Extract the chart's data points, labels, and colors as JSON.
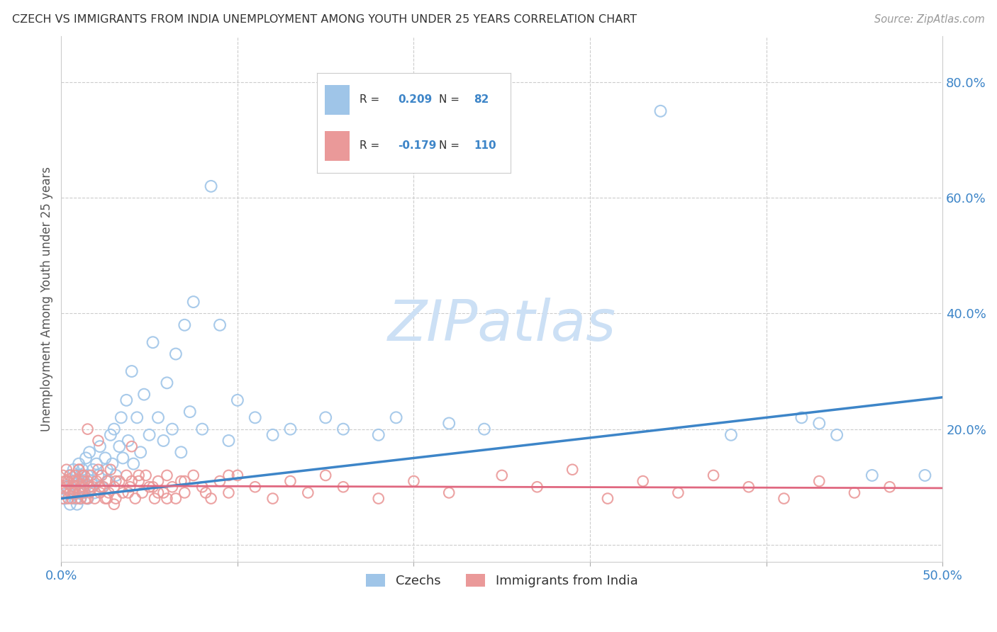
{
  "title": "CZECH VS IMMIGRANTS FROM INDIA UNEMPLOYMENT AMONG YOUTH UNDER 25 YEARS CORRELATION CHART",
  "source": "Source: ZipAtlas.com",
  "ylabel": "Unemployment Among Youth under 25 years",
  "xlim": [
    0.0,
    0.5
  ],
  "ylim": [
    -0.03,
    0.88
  ],
  "xtick_pos": [
    0.0,
    0.1,
    0.2,
    0.3,
    0.4,
    0.5
  ],
  "xtick_labels": [
    "0.0%",
    "",
    "",
    "",
    "",
    "50.0%"
  ],
  "ytick_right_pos": [
    0.0,
    0.2,
    0.4,
    0.6,
    0.8
  ],
  "ytick_right_labels": [
    "",
    "20.0%",
    "40.0%",
    "60.0%",
    "80.0%"
  ],
  "czech_R": 0.209,
  "czech_N": 82,
  "india_R": -0.179,
  "india_N": 110,
  "blue_color": "#9fc5e8",
  "pink_color": "#ea9999",
  "blue_line_color": "#3d85c8",
  "pink_line_color": "#e06880",
  "title_color": "#333333",
  "source_color": "#999999",
  "watermark_color": "#ddeeff",
  "background_color": "#ffffff",
  "grid_color": "#cccccc",
  "czech_line_start_y": 0.08,
  "czech_line_end_y": 0.255,
  "india_line_start_y": 0.102,
  "india_line_end_y": 0.098,
  "czech_x": [
    0.002,
    0.003,
    0.004,
    0.005,
    0.005,
    0.006,
    0.007,
    0.007,
    0.008,
    0.008,
    0.009,
    0.009,
    0.01,
    0.01,
    0.01,
    0.011,
    0.011,
    0.012,
    0.012,
    0.013,
    0.013,
    0.014,
    0.015,
    0.015,
    0.016,
    0.016,
    0.017,
    0.018,
    0.019,
    0.02,
    0.021,
    0.022,
    0.023,
    0.025,
    0.026,
    0.027,
    0.028,
    0.029,
    0.03,
    0.031,
    0.033,
    0.034,
    0.035,
    0.037,
    0.038,
    0.04,
    0.041,
    0.043,
    0.045,
    0.047,
    0.05,
    0.052,
    0.055,
    0.058,
    0.06,
    0.063,
    0.065,
    0.068,
    0.07,
    0.073,
    0.075,
    0.08,
    0.085,
    0.09,
    0.095,
    0.1,
    0.11,
    0.12,
    0.13,
    0.15,
    0.16,
    0.18,
    0.19,
    0.22,
    0.24,
    0.34,
    0.38,
    0.42,
    0.43,
    0.44,
    0.46,
    0.49
  ],
  "czech_y": [
    0.08,
    0.1,
    0.09,
    0.12,
    0.07,
    0.11,
    0.09,
    0.13,
    0.08,
    0.1,
    0.12,
    0.07,
    0.09,
    0.11,
    0.14,
    0.08,
    0.12,
    0.1,
    0.13,
    0.09,
    0.11,
    0.15,
    0.08,
    0.12,
    0.1,
    0.16,
    0.11,
    0.13,
    0.09,
    0.14,
    0.12,
    0.17,
    0.1,
    0.15,
    0.13,
    0.11,
    0.19,
    0.14,
    0.2,
    0.12,
    0.17,
    0.22,
    0.15,
    0.25,
    0.18,
    0.3,
    0.14,
    0.22,
    0.16,
    0.26,
    0.19,
    0.35,
    0.22,
    0.18,
    0.28,
    0.2,
    0.33,
    0.16,
    0.38,
    0.23,
    0.42,
    0.2,
    0.62,
    0.38,
    0.18,
    0.25,
    0.22,
    0.19,
    0.2,
    0.22,
    0.2,
    0.19,
    0.22,
    0.21,
    0.2,
    0.75,
    0.19,
    0.22,
    0.21,
    0.19,
    0.12,
    0.12
  ],
  "india_x": [
    0.0,
    0.001,
    0.001,
    0.002,
    0.002,
    0.003,
    0.003,
    0.004,
    0.004,
    0.005,
    0.005,
    0.006,
    0.006,
    0.007,
    0.007,
    0.008,
    0.008,
    0.009,
    0.009,
    0.01,
    0.01,
    0.011,
    0.011,
    0.012,
    0.012,
    0.013,
    0.013,
    0.014,
    0.015,
    0.015,
    0.016,
    0.017,
    0.018,
    0.019,
    0.02,
    0.021,
    0.022,
    0.023,
    0.024,
    0.025,
    0.026,
    0.027,
    0.028,
    0.03,
    0.031,
    0.033,
    0.035,
    0.037,
    0.039,
    0.04,
    0.042,
    0.044,
    0.046,
    0.048,
    0.05,
    0.053,
    0.055,
    0.058,
    0.06,
    0.063,
    0.065,
    0.068,
    0.07,
    0.075,
    0.08,
    0.085,
    0.09,
    0.095,
    0.1,
    0.11,
    0.12,
    0.13,
    0.14,
    0.15,
    0.16,
    0.18,
    0.2,
    0.22,
    0.25,
    0.27,
    0.29,
    0.31,
    0.33,
    0.35,
    0.37,
    0.39,
    0.41,
    0.43,
    0.45,
    0.47,
    0.003,
    0.007,
    0.012,
    0.016,
    0.021,
    0.026,
    0.031,
    0.038,
    0.044,
    0.052,
    0.06,
    0.07,
    0.082,
    0.095,
    0.01,
    0.015,
    0.022,
    0.03,
    0.04,
    0.055
  ],
  "india_y": [
    0.1,
    0.12,
    0.08,
    0.11,
    0.09,
    0.13,
    0.1,
    0.08,
    0.11,
    0.09,
    0.12,
    0.1,
    0.08,
    0.11,
    0.09,
    0.12,
    0.1,
    0.08,
    0.11,
    0.09,
    0.13,
    0.1,
    0.08,
    0.11,
    0.09,
    0.12,
    0.1,
    0.08,
    0.11,
    0.2,
    0.09,
    0.12,
    0.1,
    0.08,
    0.11,
    0.18,
    0.09,
    0.12,
    0.1,
    0.08,
    0.11,
    0.09,
    0.13,
    0.1,
    0.08,
    0.11,
    0.09,
    0.12,
    0.1,
    0.17,
    0.08,
    0.11,
    0.09,
    0.12,
    0.1,
    0.08,
    0.11,
    0.09,
    0.12,
    0.1,
    0.08,
    0.11,
    0.09,
    0.12,
    0.1,
    0.08,
    0.11,
    0.09,
    0.12,
    0.1,
    0.08,
    0.11,
    0.09,
    0.12,
    0.1,
    0.08,
    0.11,
    0.09,
    0.12,
    0.1,
    0.13,
    0.08,
    0.11,
    0.09,
    0.12,
    0.1,
    0.08,
    0.11,
    0.09,
    0.1,
    0.11,
    0.09,
    0.12,
    0.1,
    0.13,
    0.08,
    0.11,
    0.09,
    0.12,
    0.1,
    0.08,
    0.11,
    0.09,
    0.12,
    0.13,
    0.08,
    0.1,
    0.07,
    0.11,
    0.09
  ]
}
